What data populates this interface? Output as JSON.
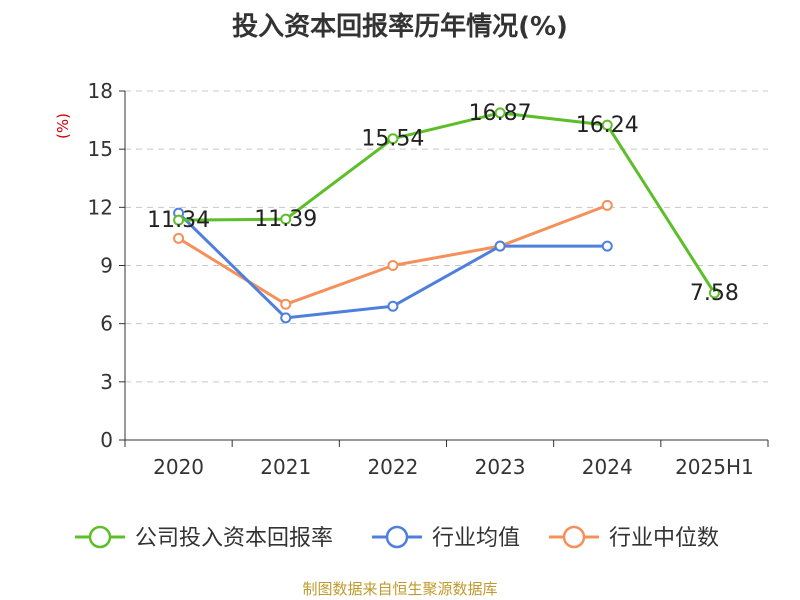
{
  "chart_data": {
    "type": "line",
    "title": "投入资本回报率历年情况(%)",
    "ylabel": "(%)",
    "categories": [
      "2020",
      "2021",
      "2022",
      "2023",
      "2024",
      "2025H1"
    ],
    "ylim": [
      0,
      18
    ],
    "yticks": [
      0,
      3,
      6,
      9,
      12,
      15,
      18
    ],
    "grid": true,
    "legend_position": "bottom",
    "series": [
      {
        "name": "公司投入资本回报率",
        "color": "#5cbf2a",
        "values": [
          11.34,
          11.39,
          15.54,
          16.87,
          16.24,
          7.58
        ],
        "labels": [
          "11.34",
          "11.39",
          "15.54",
          "16.87",
          "16.24",
          "7.58"
        ]
      },
      {
        "name": "行业均值",
        "color": "#4e7fdc",
        "values": [
          11.7,
          6.3,
          6.9,
          10.0,
          10.0,
          null
        ]
      },
      {
        "name": "行业中位数",
        "color": "#f5905a",
        "values": [
          10.4,
          7.0,
          9.0,
          10.0,
          12.1,
          null
        ]
      }
    ]
  },
  "source": "制图数据来自恒生聚源数据库"
}
